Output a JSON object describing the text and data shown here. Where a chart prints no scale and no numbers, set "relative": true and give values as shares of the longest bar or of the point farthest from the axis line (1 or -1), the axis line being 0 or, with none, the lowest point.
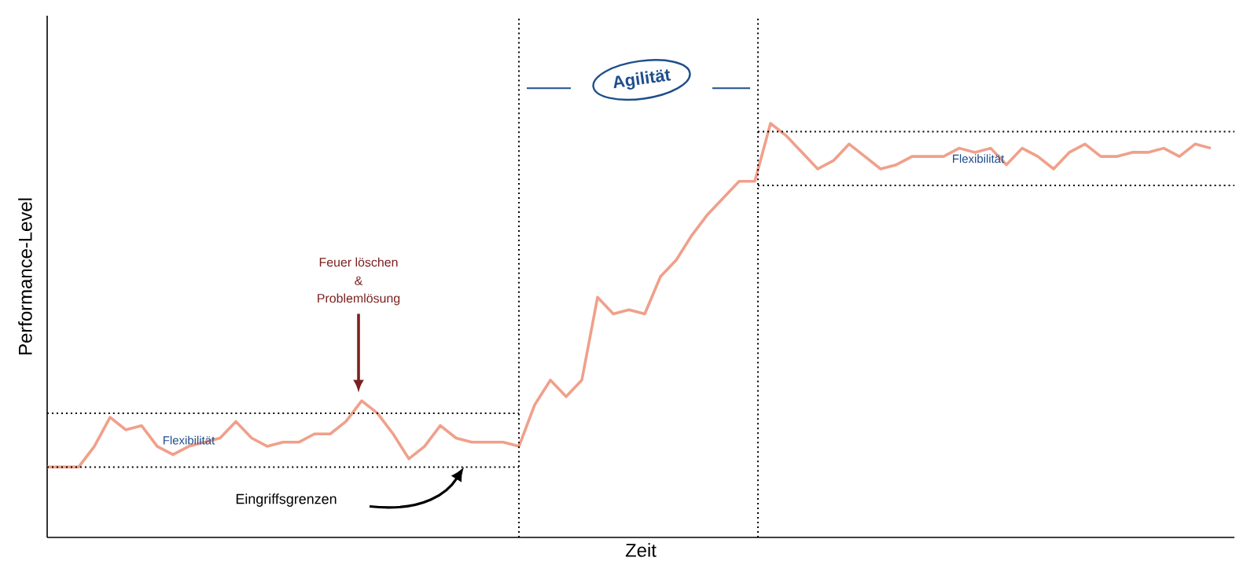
{
  "chart_data": {
    "type": "line",
    "relative": true,
    "xlabel": "Zeit",
    "ylabel": "Performance-Level",
    "categories": [
      null,
      null,
      null,
      null,
      null,
      null,
      null,
      null,
      null,
      null,
      null,
      null,
      null,
      null,
      null,
      null,
      null,
      null,
      null,
      null,
      null,
      null,
      null,
      null,
      null,
      null,
      null,
      null,
      null,
      null,
      null,
      null,
      null,
      null,
      null,
      null,
      null,
      null,
      null,
      null,
      null,
      null,
      null,
      null,
      null,
      null,
      null,
      null,
      null,
      null,
      null,
      null,
      null,
      null,
      null,
      null,
      null,
      null,
      null,
      null,
      null,
      null,
      null,
      null,
      null,
      null,
      null,
      null,
      null,
      null,
      null,
      null,
      null,
      null,
      null
    ],
    "series": [
      {
        "color": "#f0a08a",
        "values": [
          0.17,
          0.17,
          0.17,
          0.22,
          0.29,
          0.26,
          0.27,
          0.22,
          0.2,
          0.22,
          0.23,
          0.24,
          0.28,
          0.24,
          0.22,
          0.23,
          0.23,
          0.25,
          0.25,
          0.28,
          0.33,
          0.3,
          0.25,
          0.19,
          0.22,
          0.27,
          0.24,
          0.23,
          0.23,
          0.23,
          0.22,
          0.32,
          0.38,
          0.34,
          0.38,
          0.58,
          0.54,
          0.55,
          0.54,
          0.63,
          0.67,
          0.73,
          0.78,
          0.82,
          0.86,
          0.86,
          1,
          0.97,
          0.93,
          0.89,
          0.91,
          0.95,
          0.92,
          0.89,
          0.9,
          0.92,
          0.92,
          0.92,
          0.94,
          0.93,
          0.94,
          0.9,
          0.94,
          0.92,
          0.89,
          0.93,
          0.95,
          0.92,
          0.92,
          0.93,
          0.93,
          0.94,
          0.92,
          0.95,
          0.94
        ]
      }
    ],
    "ref_lines": [
      {
        "axis": "y",
        "value": 0.3,
        "color": "#000000",
        "line_style": "dotted"
      },
      {
        "axis": "y",
        "value": 0.17,
        "color": "#000000",
        "line_style": "dotted"
      },
      {
        "axis": "y",
        "value": 0.98,
        "color": "#000000",
        "line_style": "dotted"
      },
      {
        "axis": "y",
        "value": 0.85,
        "color": "#000000",
        "line_style": "dotted"
      }
    ],
    "annotations": [
      "Agilität",
      "Flexibilität",
      "Flexibilität",
      "Feuer löschen",
      "&",
      "Problemlösung",
      "Eingriffsgrenzen"
    ]
  }
}
